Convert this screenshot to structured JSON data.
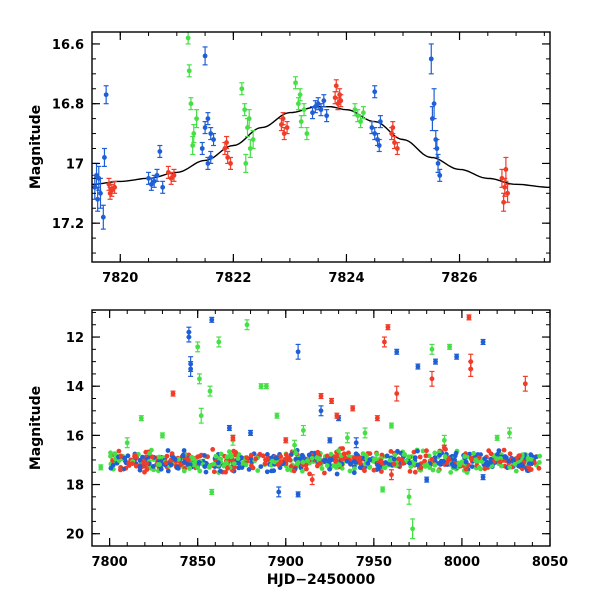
{
  "colors": {
    "blue": "#1f5fd6",
    "green": "#45e045",
    "red": "#f03c28",
    "axis": "#000000"
  },
  "chart_data": [
    {
      "type": "scatter",
      "title": "",
      "xlabel": "",
      "ylabel": "Magnitude",
      "xlim": [
        7819.5,
        7827.6
      ],
      "ylim": [
        17.33,
        16.56
      ],
      "y_inverted": true,
      "xticks": [
        7820,
        7822,
        7824,
        7826
      ],
      "xticks_labels": [
        "7820",
        "7822",
        "7824",
        "7826"
      ],
      "yticks": [
        16.6,
        16.8,
        17.0,
        17.2
      ],
      "yticks_labels": [
        "16.6",
        "16.8",
        "17",
        "17.2"
      ],
      "grid": false,
      "model_curve": {
        "description_free": true,
        "x": [
          7819.5,
          7820.0,
          7820.5,
          7821.0,
          7821.5,
          7822.0,
          7822.5,
          7823.0,
          7823.5,
          7823.7,
          7824.0,
          7824.5,
          7825.0,
          7825.5,
          7826.0,
          7826.5,
          7827.0,
          7827.6
        ],
        "y": [
          17.07,
          17.06,
          17.05,
          17.03,
          16.99,
          16.94,
          16.88,
          16.83,
          16.81,
          16.81,
          16.82,
          16.86,
          16.92,
          16.98,
          17.02,
          17.05,
          17.07,
          17.08
        ]
      },
      "series": [
        {
          "color": "blue",
          "points": [
            [
              7819.55,
              17.08,
              0.04
            ],
            [
              7819.6,
              17.12,
              0.04
            ],
            [
              7819.62,
              17.05,
              0.04
            ],
            [
              7819.65,
              17.1,
              0.05
            ],
            [
              7819.7,
              17.18,
              0.04
            ],
            [
              7819.72,
              16.98,
              0.03
            ],
            [
              7819.75,
              16.77,
              0.03
            ],
            [
              7819.58,
              17.04,
              0.04
            ],
            [
              7820.5,
              17.05,
              0.02
            ],
            [
              7820.55,
              17.07,
              0.02
            ],
            [
              7820.6,
              17.06,
              0.02
            ],
            [
              7820.65,
              17.04,
              0.02
            ],
            [
              7820.7,
              16.96,
              0.02
            ],
            [
              7820.75,
              17.08,
              0.02
            ],
            [
              7821.45,
              16.95,
              0.02
            ],
            [
              7821.5,
              16.88,
              0.02
            ],
            [
              7821.55,
              16.85,
              0.02
            ],
            [
              7821.6,
              16.9,
              0.02
            ],
            [
              7821.55,
              17.0,
              0.02
            ],
            [
              7821.6,
              16.98,
              0.02
            ],
            [
              7821.5,
              16.64,
              0.03
            ],
            [
              7821.65,
              16.92,
              0.02
            ],
            [
              7823.4,
              16.83,
              0.02
            ],
            [
              7823.45,
              16.81,
              0.02
            ],
            [
              7823.5,
              16.8,
              0.02
            ],
            [
              7823.55,
              16.82,
              0.02
            ],
            [
              7823.6,
              16.79,
              0.02
            ],
            [
              7823.65,
              16.84,
              0.02
            ],
            [
              7824.45,
              16.88,
              0.02
            ],
            [
              7824.5,
              16.9,
              0.02
            ],
            [
              7824.55,
              16.92,
              0.02
            ],
            [
              7824.6,
              16.86,
              0.02
            ],
            [
              7824.5,
              16.76,
              0.02
            ],
            [
              7824.58,
              16.94,
              0.02
            ],
            [
              7825.5,
              16.65,
              0.05
            ],
            [
              7825.55,
              16.8,
              0.05
            ],
            [
              7825.6,
              16.95,
              0.03
            ],
            [
              7825.62,
              17.0,
              0.03
            ],
            [
              7825.65,
              17.04,
              0.02
            ],
            [
              7825.58,
              16.92,
              0.03
            ],
            [
              7825.52,
              16.85,
              0.04
            ]
          ]
        },
        {
          "color": "green",
          "points": [
            [
              7821.2,
              16.58,
              0.02
            ],
            [
              7821.25,
              16.8,
              0.02
            ],
            [
              7821.3,
              16.9,
              0.03
            ],
            [
              7821.35,
              16.85,
              0.03
            ],
            [
              7821.28,
              16.94,
              0.03
            ],
            [
              7821.22,
              16.69,
              0.02
            ],
            [
              7822.15,
              16.75,
              0.02
            ],
            [
              7822.2,
              16.82,
              0.02
            ],
            [
              7822.25,
              16.88,
              0.03
            ],
            [
              7822.3,
              16.95,
              0.03
            ],
            [
              7822.22,
              17.0,
              0.03
            ],
            [
              7822.35,
              16.92,
              0.03
            ],
            [
              7822.28,
              16.85,
              0.03
            ],
            [
              7823.1,
              16.73,
              0.02
            ],
            [
              7823.15,
              16.8,
              0.02
            ],
            [
              7823.2,
              16.86,
              0.02
            ],
            [
              7823.25,
              16.82,
              0.02
            ],
            [
              7823.3,
              16.9,
              0.02
            ],
            [
              7823.18,
              16.77,
              0.02
            ],
            [
              7824.15,
              16.82,
              0.02
            ],
            [
              7824.2,
              16.84,
              0.02
            ],
            [
              7824.25,
              16.86,
              0.02
            ],
            [
              7824.3,
              16.83,
              0.02
            ]
          ]
        },
        {
          "color": "red",
          "points": [
            [
              7819.8,
              17.07,
              0.02
            ],
            [
              7819.85,
              17.09,
              0.02
            ],
            [
              7819.9,
              17.08,
              0.02
            ],
            [
              7819.82,
              17.1,
              0.02
            ],
            [
              7820.85,
              17.03,
              0.02
            ],
            [
              7820.9,
              17.05,
              0.02
            ],
            [
              7820.95,
              17.04,
              0.02
            ],
            [
              7821.85,
              16.95,
              0.02
            ],
            [
              7821.9,
              16.98,
              0.02
            ],
            [
              7821.95,
              17.0,
              0.02
            ],
            [
              7821.88,
              16.93,
              0.02
            ],
            [
              7822.85,
              16.87,
              0.02
            ],
            [
              7822.9,
              16.9,
              0.02
            ],
            [
              7822.95,
              16.88,
              0.02
            ],
            [
              7822.88,
              16.85,
              0.02
            ],
            [
              7823.8,
              16.78,
              0.02
            ],
            [
              7823.85,
              16.8,
              0.02
            ],
            [
              7823.9,
              16.79,
              0.02
            ],
            [
              7823.82,
              16.74,
              0.02
            ],
            [
              7823.88,
              16.77,
              0.02
            ],
            [
              7824.8,
              16.9,
              0.02
            ],
            [
              7824.85,
              16.93,
              0.02
            ],
            [
              7824.9,
              16.95,
              0.02
            ],
            [
              7824.82,
              16.88,
              0.02
            ],
            [
              7826.75,
              17.05,
              0.03
            ],
            [
              7826.8,
              17.08,
              0.03
            ],
            [
              7826.85,
              17.1,
              0.03
            ],
            [
              7826.82,
              17.02,
              0.04
            ],
            [
              7826.78,
              17.13,
              0.03
            ]
          ]
        }
      ]
    },
    {
      "type": "scatter",
      "title": "",
      "xlabel": "HJD−2450000",
      "ylabel": "Magnitude",
      "xlim": [
        7790,
        8050
      ],
      "ylim": [
        20.5,
        10.9
      ],
      "y_inverted": true,
      "xticks": [
        7800,
        7850,
        7900,
        7950,
        8000,
        8050
      ],
      "xticks_labels": [
        "7800",
        "7850",
        "7900",
        "7950",
        "8000",
        "8050"
      ],
      "yticks": [
        12,
        14,
        16,
        18,
        20
      ],
      "yticks_labels": [
        "12",
        "14",
        "16",
        "18",
        "20"
      ],
      "grid": false,
      "baseline": {
        "x_range": [
          7800,
          8045
        ],
        "mag": 17.05,
        "scatter": 0.25
      },
      "series": [
        {
          "color": "blue",
          "points": [
            [
              7845,
              11.8,
              0.2
            ],
            [
              7845,
              12.0,
              0.2
            ],
            [
              7846,
              13.1,
              0.3
            ],
            [
              7846,
              13.3,
              0.3
            ],
            [
              7858,
              11.3,
              0.1
            ],
            [
              7907,
              12.6,
              0.3
            ],
            [
              7920,
              15.0,
              0.2
            ],
            [
              7930,
              15.3,
              0.1
            ],
            [
              7963,
              12.6,
              0.1
            ],
            [
              7975,
              13.2,
              0.1
            ],
            [
              7985,
              13.0,
              0.1
            ],
            [
              7997,
              12.8,
              0.1
            ],
            [
              8012,
              12.2,
              0.1
            ],
            [
              7896,
              18.3,
              0.2
            ],
            [
              7907,
              18.4,
              0.1
            ],
            [
              7880,
              15.9,
              0.1
            ],
            [
              7940,
              16.3,
              0.2
            ],
            [
              7980,
              17.8,
              0.1
            ],
            [
              8012,
              17.7,
              0.1
            ],
            [
              7868,
              15.7,
              0.1
            ],
            [
              7925,
              16.2,
              0.1
            ]
          ]
        },
        {
          "color": "green",
          "points": [
            [
              7850,
              12.4,
              0.2
            ],
            [
              7851,
              13.7,
              0.2
            ],
            [
              7857,
              14.2,
              0.2
            ],
            [
              7862,
              12.2,
              0.2
            ],
            [
              7878,
              11.5,
              0.2
            ],
            [
              7886,
              14.0,
              0.1
            ],
            [
              7889,
              14.0,
              0.1
            ],
            [
              7983,
              12.5,
              0.2
            ],
            [
              7993,
              12.4,
              0.1
            ],
            [
              7858,
              18.3,
              0.1
            ],
            [
              7818,
              15.3,
              0.1
            ],
            [
              7852,
              15.2,
              0.3
            ],
            [
              7895,
              15.2,
              0.1
            ],
            [
              7960,
              15.6,
              0.1
            ],
            [
              7972,
              19.8,
              0.4
            ],
            [
              7970,
              18.5,
              0.3
            ],
            [
              8027,
              15.9,
              0.2
            ],
            [
              7810,
              16.3,
              0.2
            ],
            [
              7830,
              16.0,
              0.1
            ],
            [
              7870,
              16.2,
              0.2
            ],
            [
              7910,
              15.8,
              0.2
            ],
            [
              7935,
              16.1,
              0.2
            ],
            [
              7990,
              16.2,
              0.2
            ],
            [
              8020,
              16.1,
              0.1
            ],
            [
              7905,
              16.4,
              0.2
            ],
            [
              7945,
              15.9,
              0.2
            ],
            [
              7795,
              17.3,
              0.1
            ],
            [
              7955,
              18.2,
              0.1
            ]
          ]
        },
        {
          "color": "red",
          "points": [
            [
              7836,
              14.3,
              0.1
            ],
            [
              7920,
              14.4,
              0.1
            ],
            [
              7926,
              14.6,
              0.1
            ],
            [
              7929,
              15.2,
              0.1
            ],
            [
              7938,
              14.9,
              0.1
            ],
            [
              7956,
              12.2,
              0.2
            ],
            [
              7958,
              11.6,
              0.1
            ],
            [
              7963,
              14.3,
              0.3
            ],
            [
              7983,
              13.7,
              0.3
            ],
            [
              8004,
              11.2,
              0.1
            ],
            [
              8005,
              13.0,
              0.3
            ],
            [
              8005,
              13.3,
              0.3
            ],
            [
              8036,
              13.9,
              0.3
            ],
            [
              7952,
              15.3,
              0.1
            ],
            [
              7915,
              17.8,
              0.2
            ],
            [
              7960,
              17.6,
              0.2
            ],
            [
              7870,
              16.1,
              0.1
            ],
            [
              7900,
              16.2,
              0.1
            ],
            [
              7990,
              16.5,
              0.1
            ]
          ]
        }
      ]
    }
  ]
}
